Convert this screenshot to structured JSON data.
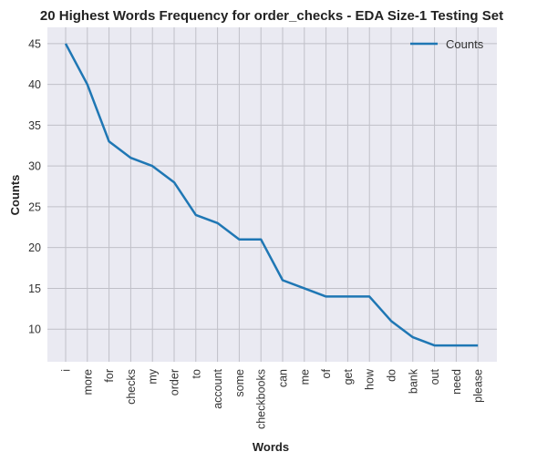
{
  "chart_data": {
    "type": "line",
    "title": "20 Highest Words Frequency for order_checks - EDA Size-1 Testing Set",
    "xlabel": "Words",
    "ylabel": "Counts",
    "categories": [
      "i",
      "more",
      "for",
      "checks",
      "my",
      "order",
      "to",
      "account",
      "some",
      "checkbooks",
      "can",
      "me",
      "of",
      "get",
      "how",
      "do",
      "bank",
      "out",
      "need",
      "please"
    ],
    "series": [
      {
        "name": "Counts",
        "values": [
          45,
          40,
          33,
          31,
          30,
          28,
          24,
          23,
          21,
          21,
          16,
          15,
          14,
          14,
          14,
          11,
          9,
          8,
          8,
          8
        ]
      }
    ],
    "ylim": [
      6,
      47
    ],
    "yticks": [
      10,
      15,
      20,
      25,
      30,
      35,
      40,
      45
    ],
    "grid": true,
    "legend_position": "top-right",
    "colors": {
      "line": "#1f77b4",
      "plot_background": "#eaeaf2",
      "grid": "#c0c0c8"
    }
  }
}
